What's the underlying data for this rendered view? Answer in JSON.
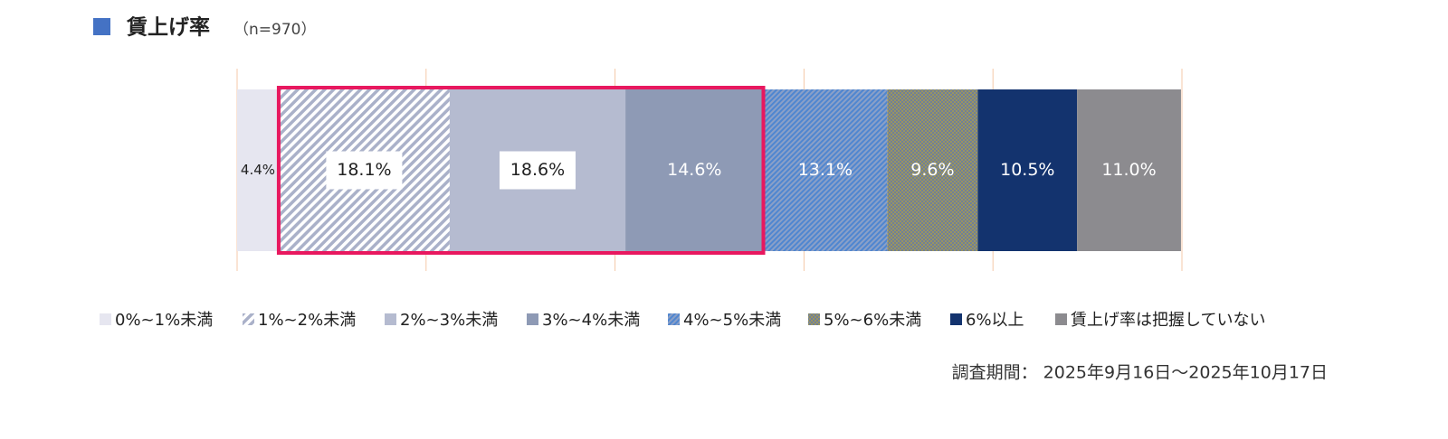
{
  "chart_data": {
    "type": "stacked-bar-100",
    "title": "賃上げ率",
    "subtitle": "（n=970）",
    "xlim": [
      0,
      100
    ],
    "xticks": [
      0,
      20,
      40,
      60,
      80,
      100
    ],
    "series": [
      {
        "name": "0%~1%未満",
        "color": "#e6e6f0",
        "values": [
          4.4
        ],
        "value_labels": [
          "4.4%"
        ]
      },
      {
        "name": "1%~2%未満",
        "color": "#aab1c9",
        "pattern": "hatch",
        "values": [
          18.1
        ],
        "value_labels": [
          "18.1%"
        ]
      },
      {
        "name": "2%~3%未満",
        "color": "#b5bbd0",
        "values": [
          18.6
        ],
        "value_labels": [
          "18.6%"
        ]
      },
      {
        "name": "3%~4%未満",
        "color": "#8e9ab5",
        "values": [
          14.6
        ],
        "value_labels": [
          "14.6%"
        ]
      },
      {
        "name": "4%~5%未満",
        "color": "#5b8fd0",
        "pattern": "fine-hatch",
        "values": [
          13.1
        ],
        "value_labels": [
          "13.1%"
        ]
      },
      {
        "name": "5%~6%未満",
        "color": "#8a8a66",
        "pattern": "checker",
        "values": [
          9.6
        ],
        "value_labels": [
          "9.6%"
        ]
      },
      {
        "name": "6%以上",
        "color": "#13336e",
        "values": [
          10.5
        ],
        "value_labels": [
          "10.5%"
        ]
      },
      {
        "name": "賃上げ率は把握していない",
        "color": "#8c8b8f",
        "values": [
          11.0
        ],
        "value_labels": [
          "11.0%"
        ]
      }
    ],
    "note": "調査期間： 2025年9月16日～2025年10月17日"
  }
}
